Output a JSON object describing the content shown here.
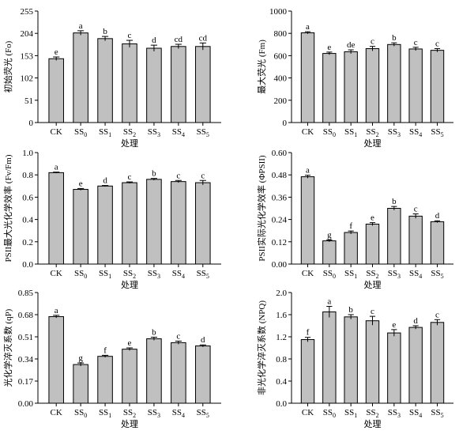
{
  "figure": {
    "xlabel": "处理",
    "categories": [
      {
        "base": "CK",
        "sub": ""
      },
      {
        "base": "SS",
        "sub": "0"
      },
      {
        "base": "SS",
        "sub": "1"
      },
      {
        "base": "SS",
        "sub": "2"
      },
      {
        "base": "SS",
        "sub": "3"
      },
      {
        "base": "SS",
        "sub": "4"
      },
      {
        "base": "SS",
        "sub": "5"
      }
    ],
    "bar_color": "#c0c0c0",
    "axis_color": "#000000"
  },
  "chart_data": [
    {
      "type": "bar",
      "ylabel": "初始荧光 (Fo)",
      "xlabel": "处理",
      "ylim": [
        0,
        255
      ],
      "yticks": [
        0,
        51,
        102,
        153,
        204,
        255
      ],
      "ytick_labels": [
        "0",
        "51",
        "102",
        "153",
        "204",
        "255"
      ],
      "categories": [
        "CK",
        "SS0",
        "SS1",
        "SS2",
        "SS3",
        "SS4",
        "SS5"
      ],
      "values": [
        146,
        205,
        192,
        180,
        170,
        174,
        174
      ],
      "errors": [
        4,
        5,
        5,
        8,
        7,
        5,
        8
      ],
      "letters": [
        "e",
        "a",
        "b",
        "c",
        "d",
        "cd",
        "cd"
      ]
    },
    {
      "type": "bar",
      "ylabel": "最大荧光 (Fm)",
      "xlabel": "处理",
      "ylim": [
        0,
        1000
      ],
      "yticks": [
        0,
        200,
        400,
        600,
        800,
        1000
      ],
      "ytick_labels": [
        "0",
        "200",
        "400",
        "600",
        "800",
        "1000"
      ],
      "categories": [
        "CK",
        "SS0",
        "SS1",
        "SS2",
        "SS3",
        "SS4",
        "SS5"
      ],
      "values": [
        805,
        620,
        635,
        663,
        700,
        660,
        648
      ],
      "errors": [
        10,
        12,
        17,
        20,
        15,
        15,
        15
      ],
      "letters": [
        "a",
        "e",
        "de",
        "c",
        "b",
        "c",
        "c"
      ]
    },
    {
      "type": "bar",
      "ylabel": "PSII最大光化学效率 (Fv/Fm)",
      "xlabel": "处理",
      "ylim": [
        0,
        1.0
      ],
      "yticks": [
        0,
        0.2,
        0.4,
        0.6,
        0.8,
        1.0
      ],
      "ytick_labels": [
        "0.0",
        "0.2",
        "0.4",
        "0.6",
        "0.8",
        "1.0"
      ],
      "categories": [
        "CK",
        "SS0",
        "SS1",
        "SS2",
        "SS3",
        "SS4",
        "SS5"
      ],
      "values": [
        0.82,
        0.67,
        0.7,
        0.73,
        0.76,
        0.74,
        0.73
      ],
      "errors": [
        0.005,
        0.008,
        0.005,
        0.007,
        0.008,
        0.01,
        0.02
      ],
      "letters": [
        "a",
        "e",
        "d",
        "c",
        "b",
        "c",
        "c"
      ]
    },
    {
      "type": "bar",
      "ylabel": "PSII实际光化学效率 (ΦPSII)",
      "xlabel": "处理",
      "ylim": [
        0,
        0.6
      ],
      "yticks": [
        0,
        0.12,
        0.24,
        0.36,
        0.48,
        0.6
      ],
      "ytick_labels": [
        "0.00",
        "0.12",
        "0.24",
        "0.36",
        "0.48",
        "0.60"
      ],
      "categories": [
        "CK",
        "SS0",
        "SS1",
        "SS2",
        "SS3",
        "SS4",
        "SS5"
      ],
      "values": [
        0.47,
        0.125,
        0.17,
        0.215,
        0.3,
        0.258,
        0.228
      ],
      "errors": [
        0.008,
        0.005,
        0.008,
        0.008,
        0.01,
        0.012,
        0.005
      ],
      "letters": [
        "a",
        "g",
        "f",
        "e",
        "b",
        "c",
        "d"
      ]
    },
    {
      "type": "bar",
      "ylabel": "光化学淬灭系数 (qP)",
      "xlabel": "处理",
      "ylim": [
        0,
        0.85
      ],
      "yticks": [
        0,
        0.17,
        0.34,
        0.51,
        0.68,
        0.85
      ],
      "ytick_labels": [
        "0.00",
        "0.17",
        "0.34",
        "0.51",
        "0.68",
        "0.85"
      ],
      "categories": [
        "CK",
        "SS0",
        "SS1",
        "SS2",
        "SS3",
        "SS4",
        "SS5"
      ],
      "values": [
        0.665,
        0.297,
        0.36,
        0.415,
        0.495,
        0.465,
        0.44
      ],
      "errors": [
        0.01,
        0.012,
        0.008,
        0.01,
        0.012,
        0.012,
        0.008
      ],
      "letters": [
        "a",
        "g",
        "f",
        "e",
        "b",
        "c",
        "d"
      ]
    },
    {
      "type": "bar",
      "ylabel": "非光化学淬灭系数 (NPQ)",
      "xlabel": "处理",
      "ylim": [
        0,
        2.0
      ],
      "yticks": [
        0,
        0.4,
        0.8,
        1.2,
        1.6,
        2.0
      ],
      "ytick_labels": [
        "0.0",
        "0.4",
        "0.8",
        "1.2",
        "1.6",
        "2.0"
      ],
      "categories": [
        "CK",
        "SS0",
        "SS1",
        "SS2",
        "SS3",
        "SS4",
        "SS5"
      ],
      "values": [
        1.15,
        1.65,
        1.56,
        1.49,
        1.27,
        1.37,
        1.46
      ],
      "errors": [
        0.04,
        0.1,
        0.04,
        0.08,
        0.06,
        0.03,
        0.05
      ],
      "letters": [
        "f",
        "a",
        "b",
        "c",
        "e",
        "d",
        "c"
      ]
    }
  ]
}
